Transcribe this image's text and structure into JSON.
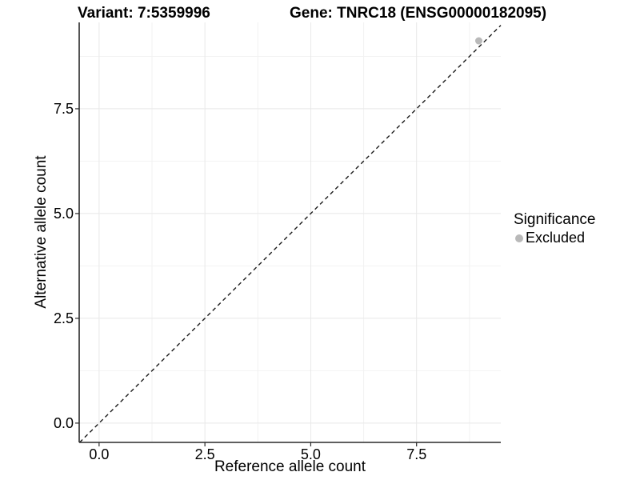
{
  "page": {
    "background": "#ffffff"
  },
  "titles": {
    "left": "Variant: 7:5359996",
    "right": "Gene: TNRC18 (ENSG00000182095)"
  },
  "legend": {
    "title": "Significance",
    "items": [
      {
        "label": "Excluded",
        "color": "#b9b9b9"
      }
    ]
  },
  "chart_data": {
    "type": "scatter",
    "title": "Variant: 7:5359996    Gene: TNRC18 (ENSG00000182095)",
    "xlabel": "Reference allele count",
    "ylabel": "Alternative allele count",
    "xlim": [
      -0.47,
      9.49
    ],
    "ylim": [
      -0.46,
      9.56
    ],
    "x_ticks": {
      "values": [
        0,
        2.5,
        5,
        7.5
      ],
      "labels": [
        "0.0",
        "2.5",
        "5.0",
        "7.5"
      ]
    },
    "y_ticks": {
      "values": [
        0,
        2.5,
        5,
        7.5
      ],
      "labels": [
        "0.0",
        "2.5",
        "5.0",
        "7.5"
      ]
    },
    "minor_ticks": [
      1.25,
      3.75,
      6.25,
      8.75
    ],
    "grid": {
      "show": true,
      "major_color": "#e8e8e8",
      "minor_color": "#f2f2f2"
    },
    "axis_color": "#2a2a2a",
    "reference_line": {
      "type": "identity",
      "slope": 1,
      "intercept": 0,
      "style": "dashed",
      "color": "#1a1a1a"
    },
    "series": [
      {
        "name": "Excluded",
        "color": "#b9b9b9",
        "points": [
          {
            "x": 8.97,
            "y": 9.12
          }
        ]
      }
    ],
    "legend": {
      "title": "Significance",
      "position": "right",
      "entries": [
        "Excluded"
      ]
    }
  }
}
